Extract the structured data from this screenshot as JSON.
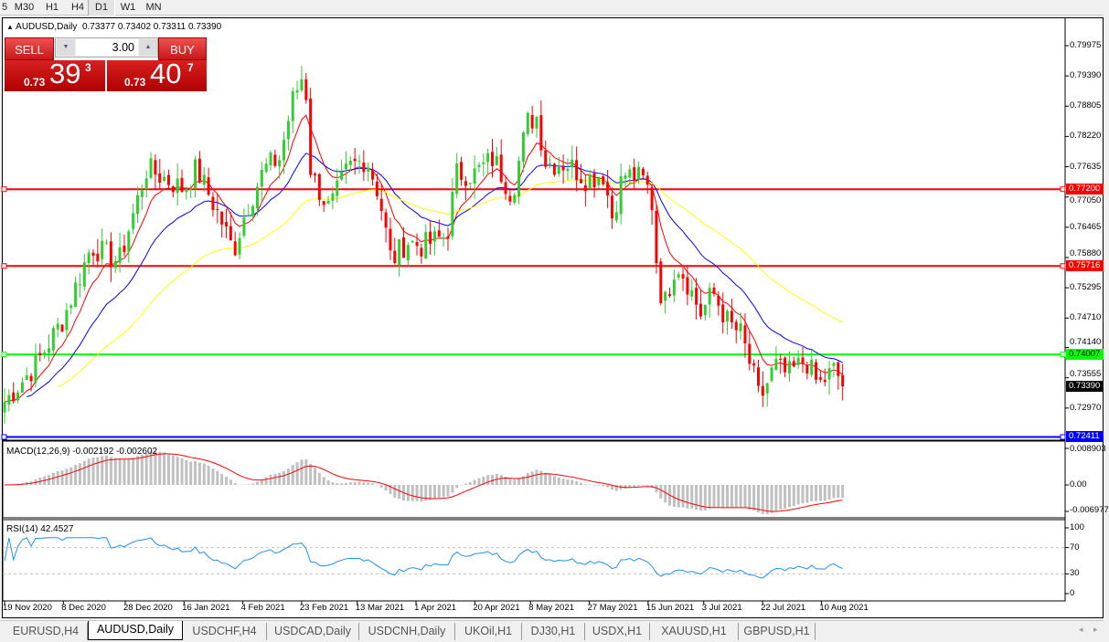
{
  "toolbar": {
    "timeframes": [
      {
        "label": "5"
      },
      {
        "label": "M30"
      },
      {
        "label": "H1"
      },
      {
        "label": "H4"
      },
      {
        "label": "D1",
        "active": true
      },
      {
        "label": "W1"
      },
      {
        "label": "MN"
      }
    ]
  },
  "chart": {
    "header": "AUDUSD,Daily",
    "ohlc": "0.73377 0.73402 0.73311 0.73390"
  },
  "trade": {
    "sell_label": "SELL",
    "buy_label": "BUY",
    "lot": "3.00",
    "sell_small": "0.73",
    "sell_big": "39",
    "sell_sup": "3",
    "buy_small": "0.73",
    "buy_big": "40",
    "buy_sup": "7"
  },
  "colors": {
    "bull": "#32cd32",
    "bear": "#ff0000",
    "ma_fast": "#ff0000",
    "ma_mid": "#0000ff",
    "ma_slow": "#ffff00",
    "macd_hist": "#c0c0c0",
    "macd_signal": "#ff0000",
    "rsi": "#1e90ff"
  },
  "chart_data": {
    "type": "candlestick",
    "symbol": "AUDUSD",
    "timeframe": "Daily",
    "ylim": [
      0.7241,
      0.8011
    ],
    "price_ticks": [
      "0.79975",
      "0.79390",
      "0.78805",
      "0.78220",
      "0.77635",
      "0.77050",
      "0.76465",
      "0.75880",
      "0.75295",
      "0.74710",
      "0.74140",
      "0.73555",
      "0.72970"
    ],
    "close_keypoints": [
      [
        "2020-11-19",
        0.7309
      ],
      [
        "2020-11-29",
        0.738
      ],
      [
        "2020-12-08",
        0.747
      ],
      [
        "2020-12-17",
        0.761
      ],
      [
        "2020-12-26",
        0.758
      ],
      [
        "2021-01-04",
        0.776
      ],
      [
        "2021-01-16",
        0.772
      ],
      [
        "2021-01-20",
        0.776
      ],
      [
        "2021-01-28",
        0.766
      ],
      [
        "2021-02-01",
        0.76
      ],
      [
        "2021-02-05",
        0.768
      ],
      [
        "2021-02-11",
        0.776
      ],
      [
        "2021-02-16",
        0.778
      ],
      [
        "2021-02-20",
        0.789
      ],
      [
        "2021-02-24",
        0.795
      ],
      [
        "2021-02-26",
        0.775
      ],
      [
        "2021-03-04",
        0.768
      ],
      [
        "2021-03-10",
        0.776
      ],
      [
        "2021-03-16",
        0.778
      ],
      [
        "2021-03-20",
        0.771
      ],
      [
        "2021-03-24",
        0.758
      ],
      [
        "2021-03-29",
        0.762
      ],
      [
        "2021-04-03",
        0.761
      ],
      [
        "2021-04-11",
        0.763
      ],
      [
        "2021-04-14",
        0.775
      ],
      [
        "2021-04-20",
        0.775
      ],
      [
        "2021-04-26",
        0.778
      ],
      [
        "2021-05-02",
        0.771
      ],
      [
        "2021-05-07",
        0.785
      ],
      [
        "2021-05-10",
        0.786
      ],
      [
        "2021-05-13",
        0.777
      ],
      [
        "2021-05-20",
        0.777
      ],
      [
        "2021-05-26",
        0.774
      ],
      [
        "2021-06-01",
        0.775
      ],
      [
        "2021-06-03",
        0.766
      ],
      [
        "2021-06-07",
        0.775
      ],
      [
        "2021-06-13",
        0.774
      ],
      [
        "2021-06-16",
        0.771
      ],
      [
        "2021-06-18",
        0.756
      ],
      [
        "2021-06-20",
        0.749
      ],
      [
        "2021-06-24",
        0.758
      ],
      [
        "2021-06-27",
        0.755
      ],
      [
        "2021-07-02",
        0.748
      ],
      [
        "2021-07-06",
        0.752
      ],
      [
        "2021-07-11",
        0.746
      ],
      [
        "2021-07-15",
        0.744
      ],
      [
        "2021-07-20",
        0.734
      ],
      [
        "2021-07-21",
        0.731
      ],
      [
        "2021-07-26",
        0.738
      ],
      [
        "2021-07-30",
        0.736
      ],
      [
        "2021-08-05",
        0.739
      ],
      [
        "2021-08-09",
        0.734
      ],
      [
        "2021-08-14",
        0.737
      ],
      [
        "2021-08-18",
        0.7339
      ]
    ],
    "hlines": [
      {
        "price": "0.77200",
        "color": "#ff0000"
      },
      {
        "price": "0.75716",
        "color": "#ff0000"
      },
      {
        "price": "0.74007",
        "color": "#00ff00"
      },
      {
        "price": "0.72411",
        "color": "#0000ff"
      }
    ],
    "current_price": "0.73390",
    "date_labels": [
      [
        "2020-11-19",
        "19 Nov 2020"
      ],
      [
        "2020-12-08",
        "8 Dec 2020"
      ],
      [
        "2020-12-28",
        "28 Dec 2020"
      ],
      [
        "2021-01-16",
        "16 Jan 2021"
      ],
      [
        "2021-02-04",
        "4 Feb 2021"
      ],
      [
        "2021-02-23",
        "23 Feb 2021"
      ],
      [
        "2021-03-13",
        "13 Mar 2021"
      ],
      [
        "2021-04-01",
        "1 Apr 2021"
      ],
      [
        "2021-04-20",
        "20 Apr 2021"
      ],
      [
        "2021-05-08",
        "8 May 2021"
      ],
      [
        "2021-05-27",
        "27 May 2021"
      ],
      [
        "2021-06-15",
        "15 Jun 2021"
      ],
      [
        "2021-07-03",
        "3 Jul 2021"
      ],
      [
        "2021-07-22",
        "22 Jul 2021"
      ],
      [
        "2021-08-10",
        "10 Aug 2021"
      ]
    ],
    "macd": {
      "label": "MACD(12,26,9) -0.002192 -0.002602",
      "ticks": [
        "0.008903",
        "0.00",
        "-0.006977"
      ],
      "ylim": [
        -0.006977,
        0.008903
      ]
    },
    "rsi": {
      "label": "RSI(14) 42.4527",
      "ticks": [
        "100",
        "70",
        "30",
        "0"
      ],
      "levels": [
        70,
        30
      ],
      "ylim": [
        0,
        100
      ]
    }
  },
  "tabs": [
    {
      "label": "EURUSD,H4"
    },
    {
      "label": "AUDUSD,Daily",
      "active": true
    },
    {
      "label": "USDCHF,H4"
    },
    {
      "label": "USDCAD,Daily"
    },
    {
      "label": "USDCNH,Daily"
    },
    {
      "label": "UKOil,H1"
    },
    {
      "label": "DJ30,H1"
    },
    {
      "label": "USDX,H1"
    },
    {
      "label": "XAUUSD,H1"
    },
    {
      "label": "GBPUSD,H1"
    }
  ]
}
